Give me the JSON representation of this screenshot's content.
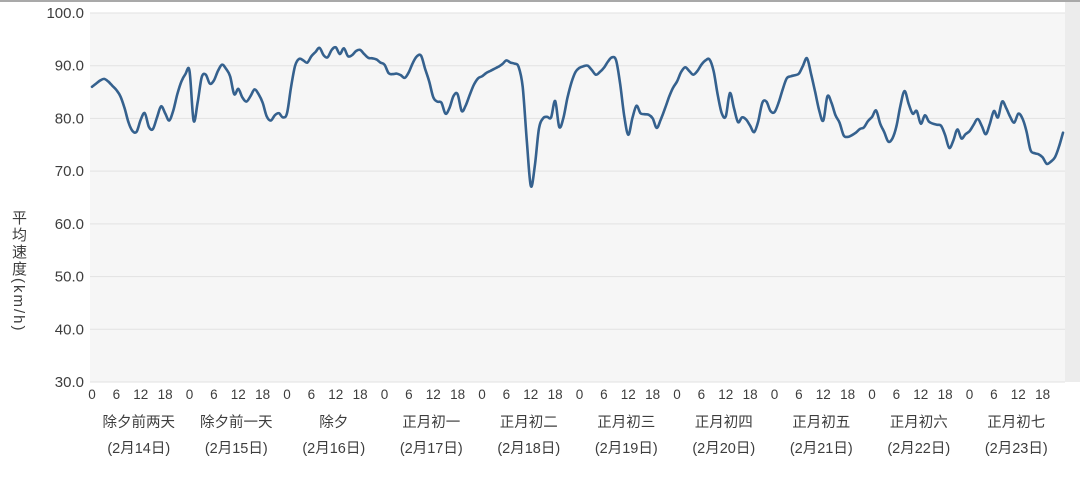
{
  "page": {
    "background": "#ffffff",
    "top_border_color": "#a9a9a9"
  },
  "chart_data": {
    "type": "line",
    "title": "",
    "ylabel": "平均速度(km/h)",
    "xlabel": "",
    "ylim": [
      30,
      100
    ],
    "y_ticks": [
      "100.0",
      "90.0",
      "80.0",
      "70.0",
      "60.0",
      "50.0",
      "40.0",
      "30.0"
    ],
    "y_tick_values": [
      100,
      90,
      80,
      70,
      60,
      50,
      40,
      30
    ],
    "hour_ticks": [
      "0",
      "6",
      "12",
      "18"
    ],
    "hour_tick_values": [
      0,
      6,
      12,
      18
    ],
    "grid": "horizontal",
    "legend": "none",
    "line_color": "#35618e",
    "plot_bg": "#f6f6f6",
    "right_strip_color": "#ececec",
    "grid_color": "#e2e2e2",
    "tick_label_color": "#3d3d3d",
    "days": [
      {
        "label": "除夕前两天",
        "date": "(2月14日)",
        "values": [
          86.0,
          86.6,
          87.2,
          87.5,
          87.0,
          86.2,
          85.4,
          84.2,
          82.0,
          79.2,
          77.6,
          77.5,
          79.8,
          81.0,
          78.4,
          78.0,
          80.2,
          82.3,
          81.0,
          79.6,
          81.5,
          84.6,
          87.0,
          88.4
        ]
      },
      {
        "label": "除夕前一天",
        "date": "(2月15日)",
        "values": [
          89.0,
          79.6,
          83.0,
          87.8,
          88.3,
          86.6,
          87.2,
          89.0,
          90.2,
          89.4,
          88.0,
          84.6,
          85.6,
          84.0,
          83.2,
          84.2,
          85.5,
          84.6,
          83.0,
          80.4,
          79.6,
          80.6,
          81.0,
          80.2
        ]
      },
      {
        "label": "除夕",
        "date": "(2月16日)",
        "values": [
          81.0,
          86.0,
          90.0,
          91.3,
          91.0,
          90.6,
          91.8,
          92.6,
          93.4,
          92.0,
          91.6,
          93.0,
          93.5,
          92.2,
          93.3,
          91.8,
          92.0,
          92.8,
          93.0,
          92.2,
          91.5,
          91.4,
          91.2,
          90.6
        ]
      },
      {
        "label": "正月初一",
        "date": "(2月17日)",
        "values": [
          90.2,
          88.6,
          88.4,
          88.5,
          88.2,
          87.7,
          88.8,
          90.6,
          91.8,
          91.9,
          89.4,
          87.0,
          84.0,
          83.2,
          83.0,
          80.9,
          82.0,
          84.3,
          84.6,
          81.4,
          82.5,
          84.5,
          86.4,
          87.6
        ]
      },
      {
        "label": "正月初二",
        "date": "(2月18日)",
        "values": [
          88.0,
          88.6,
          89.0,
          89.4,
          89.8,
          90.3,
          91.0,
          90.6,
          90.4,
          89.8,
          86.0,
          76.0,
          67.2,
          71.0,
          78.0,
          80.0,
          80.3,
          80.2,
          83.3,
          78.4,
          80.0,
          83.8,
          86.8,
          88.8
        ]
      },
      {
        "label": "正月初三",
        "date": "(2月19日)",
        "values": [
          89.6,
          89.9,
          90.0,
          89.2,
          88.3,
          88.8,
          89.6,
          90.8,
          91.6,
          91.0,
          86.5,
          80.5,
          76.9,
          80.0,
          82.4,
          81.0,
          80.8,
          80.7,
          80.0,
          78.2,
          79.8,
          81.8,
          84.0,
          85.8
        ]
      },
      {
        "label": "正月初四",
        "date": "(2月20日)",
        "values": [
          87.0,
          88.8,
          89.7,
          89.0,
          88.3,
          89.0,
          90.2,
          91.0,
          91.2,
          89.0,
          84.5,
          81.0,
          80.4,
          84.8,
          82.0,
          79.3,
          80.2,
          79.8,
          78.6,
          77.4,
          79.5,
          83.0,
          83.2,
          81.4
        ]
      },
      {
        "label": "正月初五",
        "date": "(2月21日)",
        "values": [
          81.2,
          83.0,
          85.5,
          87.6,
          88.0,
          88.2,
          88.5,
          90.0,
          91.4,
          88.4,
          85.0,
          81.5,
          79.6,
          84.2,
          83.0,
          80.6,
          79.2,
          76.8,
          76.5,
          76.8,
          77.3,
          78.0,
          78.3,
          79.5
        ]
      },
      {
        "label": "正月初六",
        "date": "(2月22日)",
        "values": [
          80.3,
          81.5,
          79.0,
          77.4,
          75.6,
          76.2,
          78.5,
          82.5,
          85.2,
          82.8,
          80.9,
          81.4,
          79.0,
          80.6,
          79.4,
          79.0,
          78.8,
          78.6,
          76.8,
          74.4,
          75.8,
          77.9,
          76.2,
          77.0
        ]
      },
      {
        "label": "正月初七",
        "date": "(2月23日)",
        "values": [
          77.6,
          78.8,
          79.9,
          78.6,
          77.0,
          79.0,
          81.4,
          80.2,
          83.2,
          82.0,
          80.3,
          79.2,
          80.9,
          80.0,
          77.6,
          74.0,
          73.4,
          73.2,
          72.6,
          71.4,
          71.8,
          72.6,
          74.6,
          77.3
        ]
      }
    ]
  }
}
